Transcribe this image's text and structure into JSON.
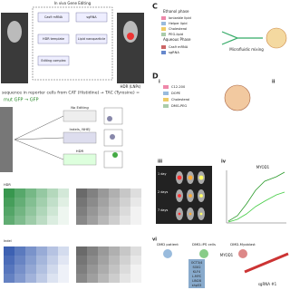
{
  "panel_a": {
    "title": "In vivo Gene Editing",
    "steps": [
      "Cas9 mRNA",
      "sgRNA",
      "HDR template",
      "Lipid nanoparticle",
      "Editing complex"
    ],
    "result": "HDR (LNPs)"
  },
  "panel_b": {
    "line1": "sequence in reporter cells from CAT (Histidine) → TAC (Tyrosine) =",
    "line2": "mut GFP → GFP",
    "outcomes": [
      "No Editing",
      "Indels, NHEJ",
      "HDR"
    ]
  },
  "panel_c": {
    "label": "C",
    "ethanol": "Ethanol phase",
    "aqueous": "Aqueous Phase",
    "mixing": "Microfluidic mixing",
    "components": [
      "Ionizable lipid",
      "Helper lipid",
      "Cholesterol",
      "PEG-lipid",
      "Cas9 mRNA",
      "sgRNA"
    ]
  },
  "panel_d": {
    "label": "D",
    "subs": [
      "i",
      "ii",
      "iii",
      "iv"
    ],
    "components": [
      "C12-200",
      "DOPE",
      "Cholesterol",
      "DMG-PEG"
    ],
    "days": [
      "1 day",
      "2 days",
      "7 days"
    ],
    "chart_title": "MYOD1"
  },
  "panel_e": {
    "label": "vi",
    "steps": [
      "DMD patient",
      "DMD-iPS cells",
      "DMD-Myoblast"
    ],
    "factors": [
      "OCT3/4",
      "SOX2",
      "KLF4",
      "L-MYC",
      "LIN28",
      "shp53"
    ],
    "myod": "MYOD1",
    "sgrna": "sgRNA #1"
  },
  "heatmaps": {
    "top": "HDR",
    "bottom": "Indel"
  }
}
